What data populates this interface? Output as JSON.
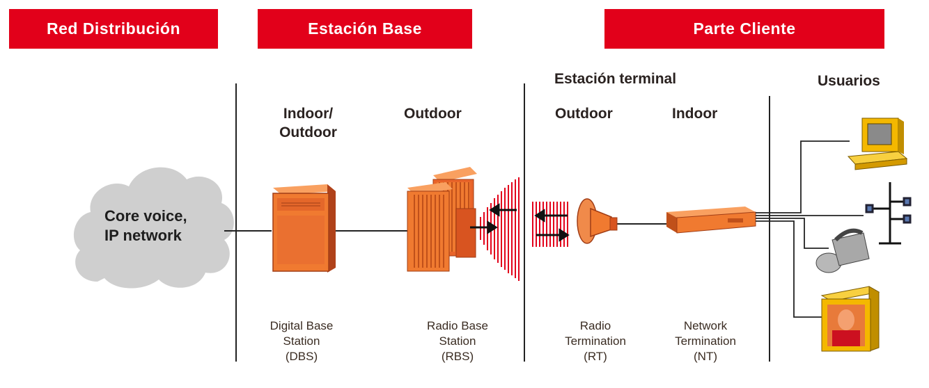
{
  "banners": {
    "red_distribucion": "Red Distribución",
    "estacion_base": "Estación Base",
    "parte_cliente": "Parte Cliente"
  },
  "headers": {
    "estacion_terminal": "Estación terminal",
    "usuarios": "Usuarios",
    "dbs_location_line1": "Indoor/",
    "dbs_location_line2": "Outdoor",
    "rbs_location": "Outdoor",
    "rt_location": "Outdoor",
    "nt_location": "Indoor"
  },
  "cloud": {
    "line1": "Core voice,",
    "line2": "IP network"
  },
  "captions": {
    "dbs": [
      "Digital Base",
      "Station",
      "(DBS)"
    ],
    "rbs": [
      "Radio Base",
      "Station",
      "(RBS)"
    ],
    "rt": [
      "Radio",
      "Termination",
      "(RT)"
    ],
    "nt": [
      "Network",
      "Termination",
      "(NT)"
    ]
  },
  "icons": {
    "cloud": "cloud-icon",
    "dbs": "base-station-cabinet-icon",
    "rbs": "radio-base-station-icon",
    "rt": "dish-antenna-icon",
    "nt": "network-termination-device-icon",
    "computer": "computer-icon",
    "phone_network": "phone-network-icon",
    "telephone": "telephone-icon",
    "videophone": "videophone-icon"
  },
  "colors": {
    "banner": "#e2001a",
    "equipment_orange": "#f07a30",
    "equipment_dark": "#c0501a",
    "wave_red": "#e2001a",
    "cloud": "#cfcfcf",
    "computer_yellow": "#f4b800"
  }
}
